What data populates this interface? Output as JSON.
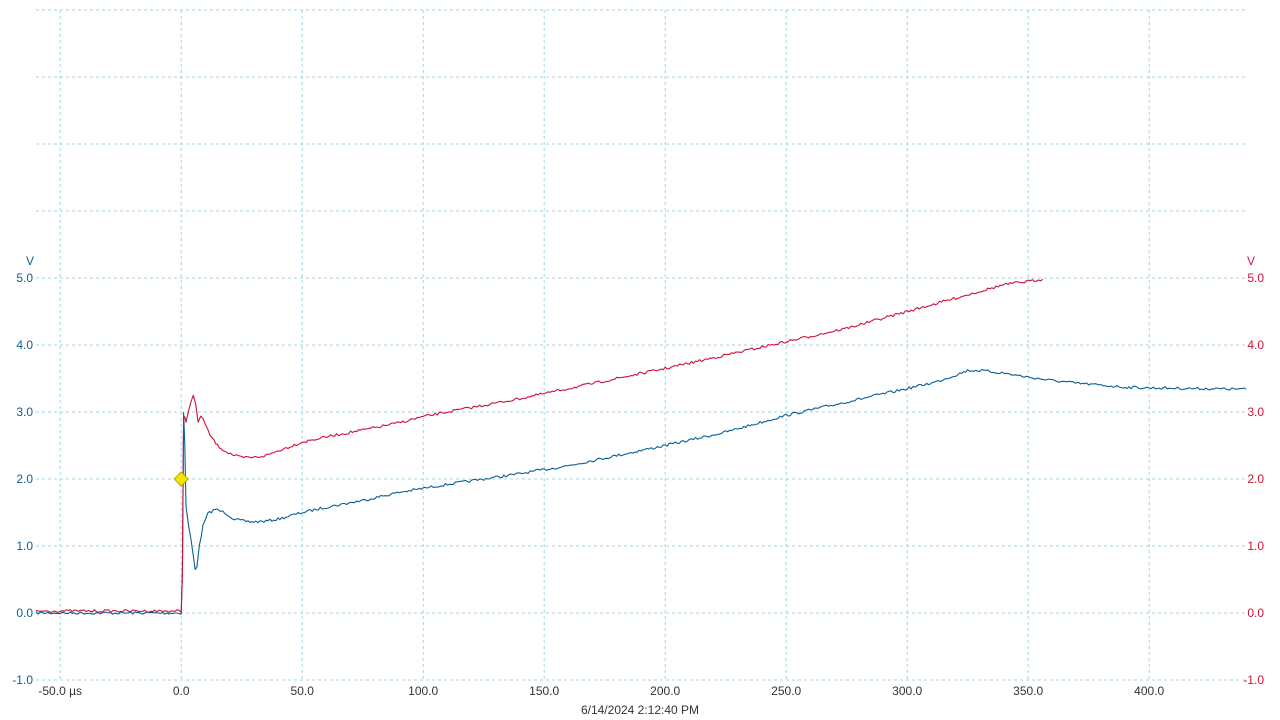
{
  "timestamp": "6/14/2024 2:12:40 PM",
  "colors": {
    "ch1": "#0b5f95",
    "ch2": "#d0103a",
    "grid": "#a9d3df",
    "trigger": "#f4e600"
  },
  "chart_data": {
    "type": "line",
    "title": "",
    "xlabel": "",
    "x_unit": "µs",
    "xlim": [
      -60,
      440
    ],
    "x_ticks": [
      -50,
      0,
      50,
      100,
      150,
      200,
      250,
      300,
      350,
      400
    ],
    "x_tick_labels": [
      "-50.0 µs",
      "0.0",
      "50.0",
      "100.0",
      "150.0",
      "200.0",
      "250.0",
      "300.0",
      "350.0",
      "400.0"
    ],
    "left_axis": {
      "unit": "V",
      "ylim": [
        -1,
        9
      ],
      "ticks": [
        -1,
        0,
        1,
        2,
        3,
        4,
        5
      ],
      "tick_labels": [
        "-1.0",
        "0.0",
        "1.0",
        "2.0",
        "3.0",
        "4.0",
        "5.0"
      ]
    },
    "right_axis": {
      "unit": "V",
      "ylim": [
        -1,
        9
      ],
      "ticks": [
        -1,
        0,
        1,
        2,
        3,
        4,
        5
      ],
      "tick_labels": [
        "-1.0",
        "0.0",
        "1.0",
        "2.0",
        "3.0",
        "4.0",
        "5.0"
      ]
    },
    "grid": true,
    "legend": "none",
    "trigger": {
      "x": 0,
      "y": 2.0
    },
    "series": [
      {
        "axis": "left",
        "color": "#0b5f95",
        "x": [
          -60,
          -20,
          -1,
          0,
          0.5,
          1,
          1.5,
          2,
          3,
          4,
          5,
          5.8,
          6.5,
          7.5,
          9,
          11,
          14,
          18,
          22,
          26,
          30,
          35,
          40,
          45,
          50,
          60,
          75,
          90,
          100,
          110,
          125,
          140,
          160,
          180,
          200,
          225,
          250,
          275,
          300,
          312,
          320,
          325,
          330,
          340,
          350,
          360,
          370,
          380,
          390,
          400,
          420,
          440
        ],
        "y": [
          0.0,
          0.0,
          0.0,
          0.0,
          0.6,
          3.0,
          2.5,
          1.6,
          1.3,
          1.1,
          0.85,
          0.66,
          0.7,
          1.0,
          1.3,
          1.48,
          1.55,
          1.5,
          1.4,
          1.37,
          1.36,
          1.37,
          1.4,
          1.45,
          1.5,
          1.58,
          1.68,
          1.8,
          1.86,
          1.92,
          2.0,
          2.08,
          2.2,
          2.35,
          2.5,
          2.7,
          2.95,
          3.15,
          3.35,
          3.45,
          3.55,
          3.62,
          3.62,
          3.58,
          3.52,
          3.47,
          3.43,
          3.4,
          3.37,
          3.36,
          3.35,
          3.34
        ]
      },
      {
        "axis": "right",
        "color": "#d0103a",
        "x": [
          -60,
          -20,
          -1,
          0,
          0.5,
          1,
          1.5,
          2,
          3,
          4,
          5,
          6,
          7,
          8,
          9,
          10,
          12,
          15,
          18,
          22,
          25,
          30,
          35,
          40,
          50,
          60,
          75,
          90,
          100,
          110,
          125,
          140,
          160,
          180,
          200,
          225,
          250,
          275,
          300,
          320,
          340,
          356
        ],
        "y": [
          0.03,
          0.03,
          0.03,
          0.0,
          0.6,
          2.9,
          2.95,
          2.85,
          3.0,
          3.15,
          3.25,
          3.1,
          2.85,
          2.95,
          2.9,
          2.8,
          2.65,
          2.5,
          2.42,
          2.35,
          2.32,
          2.32,
          2.35,
          2.42,
          2.55,
          2.63,
          2.73,
          2.84,
          2.93,
          3.0,
          3.1,
          3.2,
          3.35,
          3.5,
          3.65,
          3.85,
          4.05,
          4.25,
          4.5,
          4.7,
          4.9,
          4.98
        ]
      }
    ]
  }
}
